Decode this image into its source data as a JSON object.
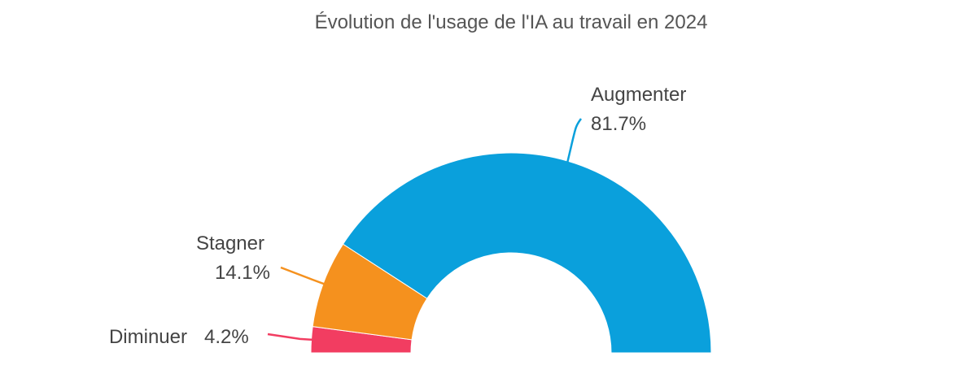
{
  "chart_data": {
    "type": "pie",
    "variant": "semi-donut",
    "title": "Évolution de l'usage de l'IA au travail en 2024",
    "slices": [
      {
        "name": "Diminuer",
        "value": 4.2,
        "label": "4.2%",
        "color": "#f23d61"
      },
      {
        "name": "Stagner",
        "value": 14.1,
        "label": "14.1%",
        "color": "#f5911e"
      },
      {
        "name": "Augmenter",
        "value": 81.7,
        "label": "81.7%",
        "color": "#0aa0dc"
      }
    ],
    "legend": "none"
  }
}
